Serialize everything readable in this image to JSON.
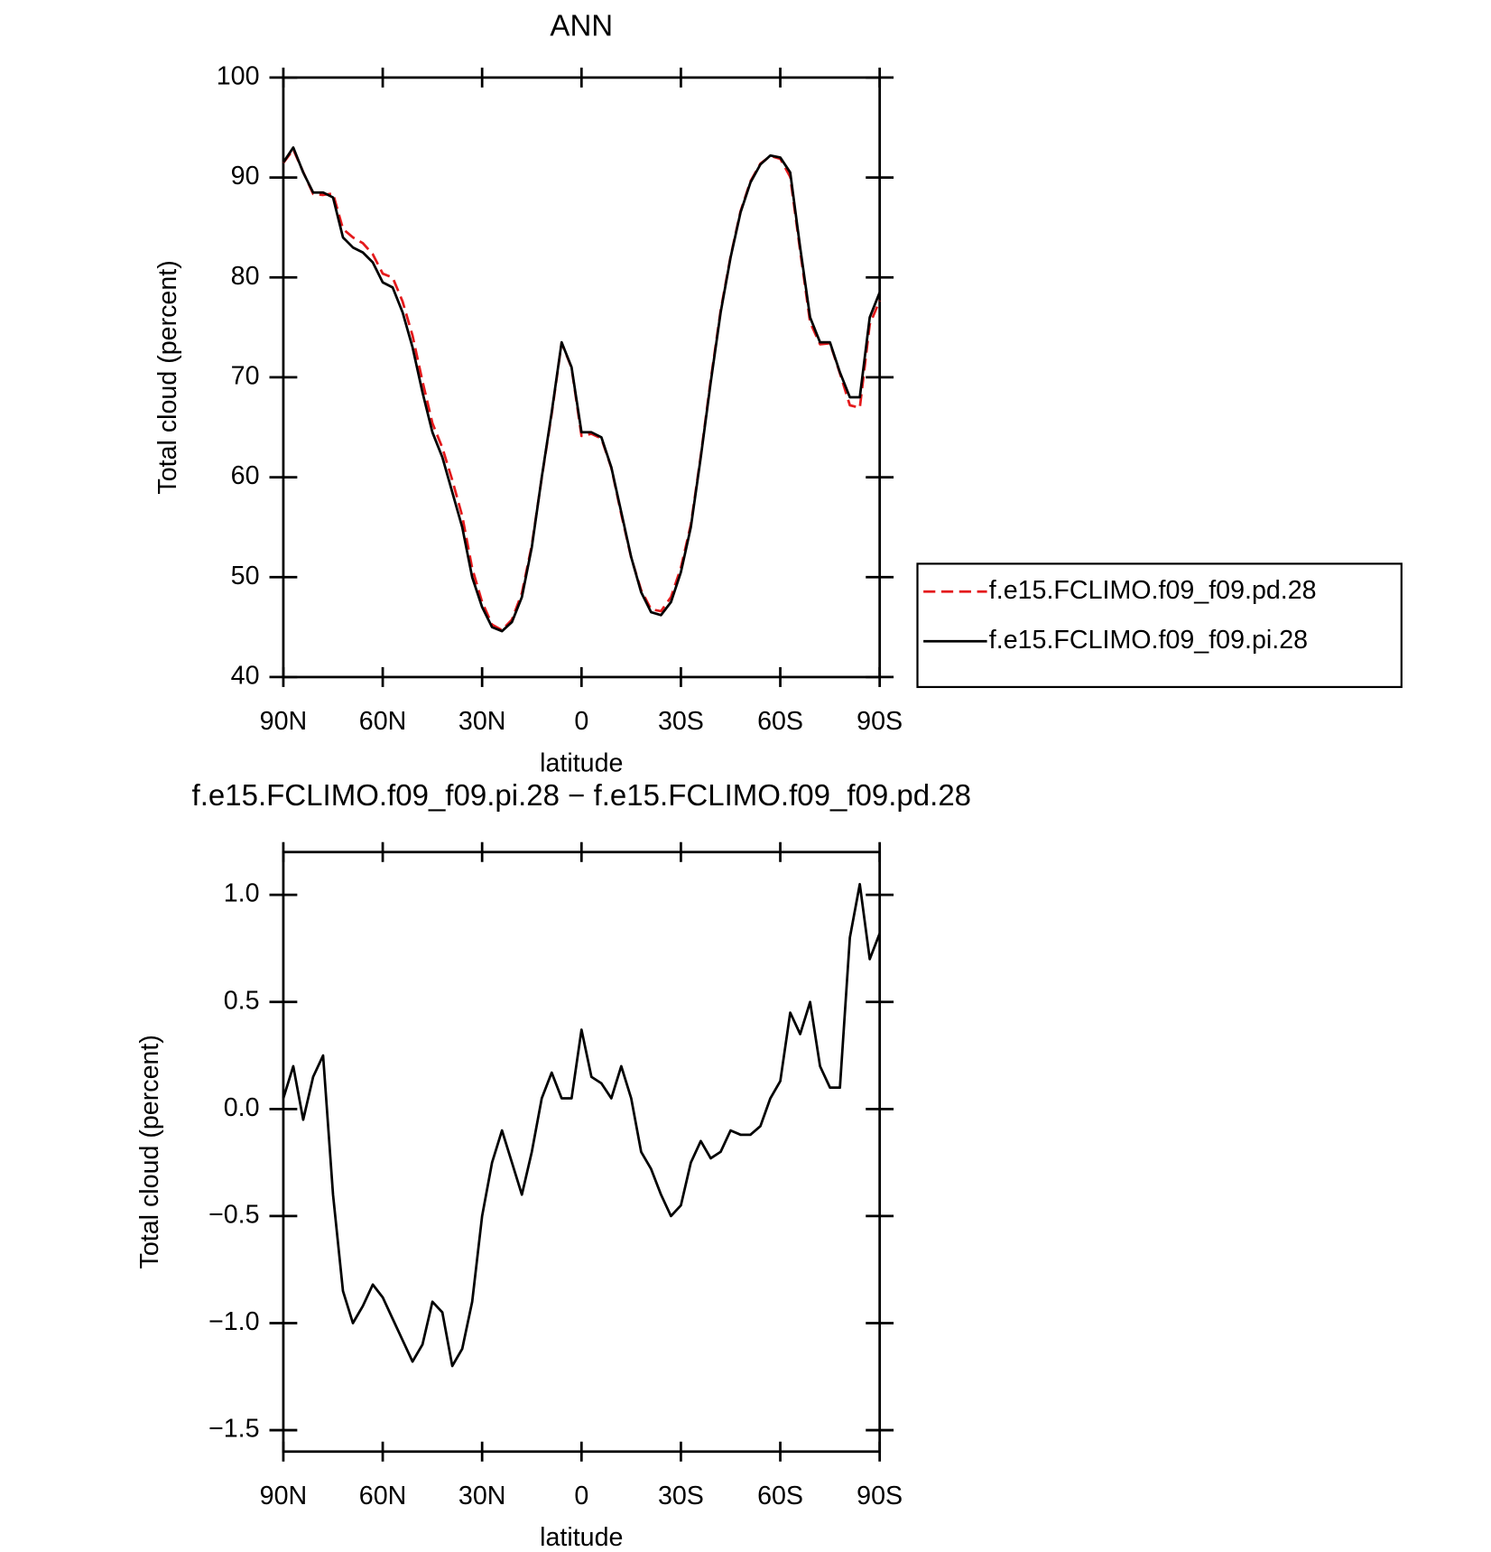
{
  "chart_data": [
    {
      "type": "line",
      "title": "ANN",
      "xlabel": "latitude",
      "ylabel": "Total cloud (percent)",
      "x": [
        90,
        87,
        84,
        81,
        78,
        75,
        72,
        69,
        66,
        63,
        60,
        57,
        54,
        51,
        48,
        45,
        42,
        39,
        36,
        33,
        30,
        27,
        24,
        21,
        18,
        15,
        12,
        9,
        6,
        3,
        0,
        -3,
        -6,
        -9,
        -12,
        -15,
        -18,
        -21,
        -24,
        -27,
        -30,
        -33,
        -36,
        -39,
        -42,
        -45,
        -48,
        -51,
        -54,
        -57,
        -60,
        -63,
        -66,
        -69,
        -72,
        -75,
        -78,
        -81,
        -84,
        -87,
        -90
      ],
      "series": [
        {
          "name": "f.e15.FCLIMO.f09_f09.pd.28",
          "color": "#e41a1c",
          "dashed": true,
          "values": [
            91.45,
            92.8,
            90.55,
            88.35,
            88.25,
            88.4,
            84.85,
            84.0,
            83.42,
            82.32,
            80.38,
            79.98,
            77.58,
            74.18,
            69.6,
            65.4,
            62.95,
            59.7,
            56.12,
            50.9,
            47.5,
            45.25,
            44.7,
            45.75,
            48.4,
            53.2,
            59.95,
            66.33,
            73.45,
            70.95,
            64.13,
            64.35,
            63.88,
            60.95,
            56.3,
            51.95,
            48.7,
            46.78,
            46.6,
            48.0,
            50.95,
            55.25,
            62.15,
            69.73,
            76.7,
            82.1,
            86.62,
            89.62,
            91.38,
            92.15,
            91.87,
            90.05,
            82.65,
            75.5,
            73.3,
            73.4,
            70.4,
            67.2,
            66.95,
            75.3,
            77.68
          ]
        },
        {
          "name": "f.e15.FCLIMO.f09_f09.pi.28",
          "color": "#000000",
          "dashed": false,
          "values": [
            91.5,
            93,
            90.5,
            88.5,
            88.5,
            88,
            84,
            83,
            82.5,
            81.5,
            79.5,
            79,
            76.5,
            73,
            68.5,
            64.5,
            62,
            58.5,
            55,
            50,
            47,
            45,
            44.6,
            45.5,
            48,
            53,
            60,
            66.5,
            73.5,
            71,
            64.5,
            64.5,
            64,
            61,
            56.5,
            52,
            48.5,
            46.5,
            46.2,
            47.5,
            50.5,
            55,
            62,
            69.5,
            76.5,
            82,
            86.5,
            89.5,
            91.3,
            92.2,
            92,
            90.5,
            83,
            76,
            73.5,
            73.5,
            70.5,
            68,
            68,
            76,
            78.5
          ]
        }
      ],
      "xlim": [
        90,
        -90
      ],
      "xticks": [
        {
          "value": 90,
          "label": "90N"
        },
        {
          "value": 60,
          "label": "60N"
        },
        {
          "value": 30,
          "label": "30N"
        },
        0,
        {
          "value": -30,
          "label": "30S"
        },
        {
          "value": -60,
          "label": "60S"
        },
        {
          "value": -90,
          "label": "90S"
        }
      ],
      "ylim": [
        40,
        100
      ],
      "yticks": [
        40,
        50,
        60,
        70,
        80,
        90,
        100
      ],
      "legend": "right"
    },
    {
      "type": "line",
      "title": "f.e15.FCLIMO.f09_f09.pi.28 − f.e15.FCLIMO.f09_f09.pd.28",
      "xlabel": "latitude",
      "ylabel": "Total cloud (percent)",
      "x": [
        90,
        87,
        84,
        81,
        78,
        75,
        72,
        69,
        66,
        63,
        60,
        57,
        54,
        51,
        48,
        45,
        42,
        39,
        36,
        33,
        30,
        27,
        24,
        21,
        18,
        15,
        12,
        9,
        6,
        3,
        0,
        -3,
        -6,
        -9,
        -12,
        -15,
        -18,
        -21,
        -24,
        -27,
        -30,
        -33,
        -36,
        -39,
        -42,
        -45,
        -48,
        -51,
        -54,
        -57,
        -60,
        -63,
        -66,
        -69,
        -72,
        -75,
        -78,
        -81,
        -84,
        -87,
        -90
      ],
      "color": "#000000",
      "values": [
        0.05,
        0.2,
        -0.05,
        0.15,
        0.25,
        -0.4,
        -0.85,
        -1.0,
        -0.92,
        -0.82,
        -0.88,
        -0.98,
        -1.08,
        -1.18,
        -1.1,
        -0.9,
        -0.95,
        -1.2,
        -1.12,
        -0.9,
        -0.5,
        -0.25,
        -0.1,
        -0.25,
        -0.4,
        -0.2,
        0.05,
        0.17,
        0.05,
        0.05,
        0.37,
        0.15,
        0.12,
        0.05,
        0.2,
        0.05,
        -0.2,
        -0.28,
        -0.4,
        -0.5,
        -0.45,
        -0.25,
        -0.15,
        -0.23,
        -0.2,
        -0.1,
        -0.12,
        -0.12,
        -0.08,
        0.05,
        0.13,
        0.45,
        0.35,
        0.5,
        0.2,
        0.1,
        0.1,
        0.8,
        1.05,
        0.7,
        0.82
      ],
      "xlim": [
        90,
        -90
      ],
      "xticks": [
        {
          "value": 90,
          "label": "90N"
        },
        {
          "value": 60,
          "label": "60N"
        },
        {
          "value": 30,
          "label": "30N"
        },
        0,
        {
          "value": -30,
          "label": "30S"
        },
        {
          "value": -60,
          "label": "60S"
        },
        {
          "value": -90,
          "label": "90S"
        }
      ],
      "ylim": [
        -1.6,
        1.2
      ],
      "yticks": [
        {
          "value": -1.5,
          "label": "−1.5"
        },
        {
          "value": -1.0,
          "label": "−1.0"
        },
        {
          "value": -0.5,
          "label": "−0.5"
        },
        {
          "value": 0,
          "label": "0.0"
        },
        {
          "value": 0.5,
          "label": "0.5"
        },
        {
          "value": 1.0,
          "label": "1.0"
        }
      ]
    }
  ]
}
